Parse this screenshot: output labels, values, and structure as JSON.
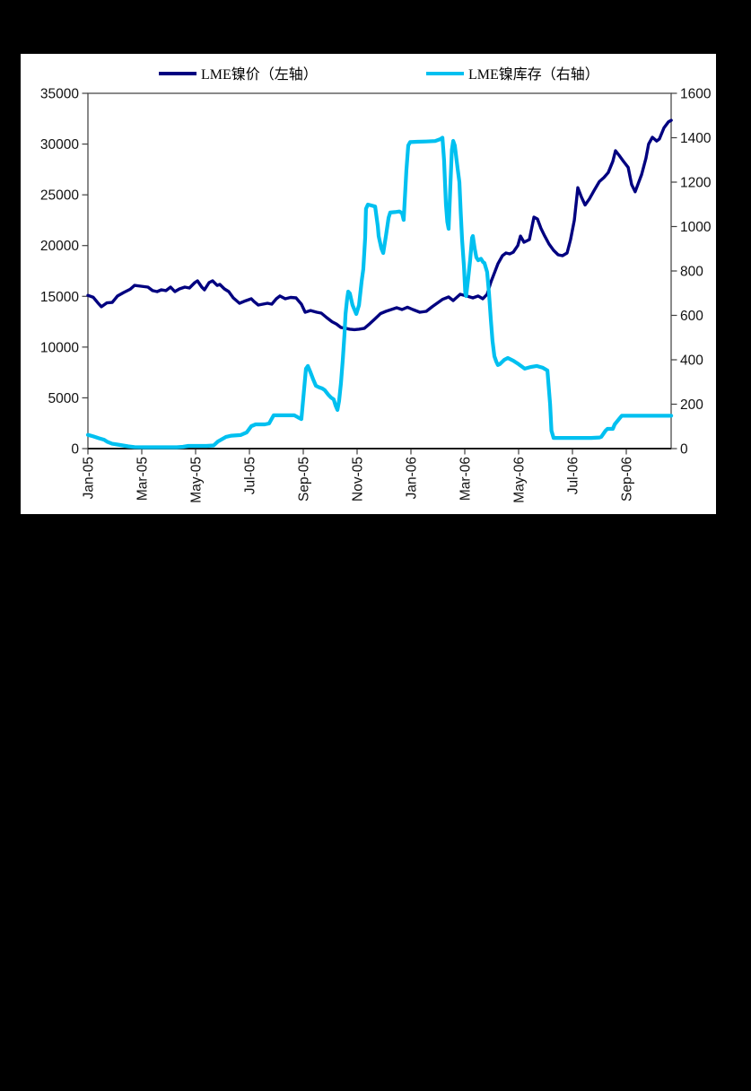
{
  "page": {
    "background": "#000000",
    "panel_background": "#ffffff"
  },
  "legend": {
    "items": [
      {
        "label": "LME镍价（左轴）",
        "color": "#000080"
      },
      {
        "label": "LME镍库存（右轴）",
        "color": "#00c0f0"
      }
    ]
  },
  "chart_data": {
    "type": "line",
    "title": "",
    "xlabel": "",
    "ylabel_left": "LME镍价",
    "ylabel_right": "LME镍库存",
    "grid": false,
    "legend_position": "top",
    "x_unit": "months since Jan-2005 (weekly data)",
    "x_range_months": [
      0,
      21.67
    ],
    "x_tick_months": [
      0,
      2,
      4,
      6,
      8,
      10,
      12,
      14,
      16,
      18,
      20
    ],
    "x_tick_labels": [
      "Jan-05",
      "Mar-05",
      "May-05",
      "Jul-05",
      "Sep-05",
      "Nov-05",
      "Jan-06",
      "Mar-06",
      "May-06",
      "Jul-06",
      "Sep-06"
    ],
    "y_left": {
      "range": [
        0,
        35000
      ],
      "ticks": [
        0,
        5000,
        10000,
        15000,
        20000,
        25000,
        30000,
        35000
      ]
    },
    "y_right": {
      "range": [
        0,
        1600
      ],
      "ticks": [
        0,
        200,
        400,
        600,
        800,
        1000,
        1200,
        1400,
        1600
      ]
    },
    "series": [
      {
        "name": "LME镍价（左轴）",
        "axis": "left",
        "color": "#000080",
        "stroke_width": 3.4,
        "points": [
          [
            0,
            15100
          ],
          [
            0.2,
            14900
          ],
          [
            0.37,
            14350
          ],
          [
            0.5,
            13970
          ],
          [
            0.7,
            14350
          ],
          [
            0.9,
            14400
          ],
          [
            1.1,
            15030
          ],
          [
            1.33,
            15380
          ],
          [
            1.57,
            15700
          ],
          [
            1.73,
            16080
          ],
          [
            1.97,
            16000
          ],
          [
            2.23,
            15910
          ],
          [
            2.4,
            15560
          ],
          [
            2.57,
            15470
          ],
          [
            2.73,
            15640
          ],
          [
            2.9,
            15560
          ],
          [
            3.07,
            15910
          ],
          [
            3.23,
            15470
          ],
          [
            3.4,
            15730
          ],
          [
            3.6,
            15910
          ],
          [
            3.77,
            15820
          ],
          [
            3.97,
            16350
          ],
          [
            4.07,
            16530
          ],
          [
            4.23,
            15910
          ],
          [
            4.33,
            15640
          ],
          [
            4.5,
            16350
          ],
          [
            4.63,
            16530
          ],
          [
            4.8,
            16080
          ],
          [
            4.9,
            16170
          ],
          [
            5.07,
            15730
          ],
          [
            5.23,
            15470
          ],
          [
            5.4,
            14850
          ],
          [
            5.63,
            14320
          ],
          [
            5.8,
            14500
          ],
          [
            6.07,
            14760
          ],
          [
            6.17,
            14490
          ],
          [
            6.33,
            14140
          ],
          [
            6.5,
            14230
          ],
          [
            6.67,
            14320
          ],
          [
            6.83,
            14230
          ],
          [
            7.0,
            14760
          ],
          [
            7.13,
            15030
          ],
          [
            7.33,
            14760
          ],
          [
            7.53,
            14890
          ],
          [
            7.73,
            14850
          ],
          [
            7.93,
            14230
          ],
          [
            8.07,
            13430
          ],
          [
            8.27,
            13600
          ],
          [
            8.5,
            13430
          ],
          [
            8.67,
            13350
          ],
          [
            8.87,
            12900
          ],
          [
            9.07,
            12500
          ],
          [
            9.23,
            12280
          ],
          [
            9.4,
            11930
          ],
          [
            9.57,
            11850
          ],
          [
            9.73,
            11760
          ],
          [
            9.9,
            11720
          ],
          [
            10.07,
            11760
          ],
          [
            10.27,
            11850
          ],
          [
            10.47,
            12300
          ],
          [
            10.67,
            12800
          ],
          [
            10.87,
            13300
          ],
          [
            11.07,
            13520
          ],
          [
            11.27,
            13700
          ],
          [
            11.47,
            13880
          ],
          [
            11.67,
            13700
          ],
          [
            11.87,
            13930
          ],
          [
            12.07,
            13700
          ],
          [
            12.33,
            13430
          ],
          [
            12.57,
            13520
          ],
          [
            12.8,
            14000
          ],
          [
            12.97,
            14320
          ],
          [
            13.17,
            14700
          ],
          [
            13.4,
            14940
          ],
          [
            13.57,
            14580
          ],
          [
            13.83,
            15200
          ],
          [
            14.07,
            15030
          ],
          [
            14.3,
            14850
          ],
          [
            14.5,
            15030
          ],
          [
            14.67,
            14760
          ],
          [
            14.83,
            15200
          ],
          [
            14.97,
            16400
          ],
          [
            15.1,
            17300
          ],
          [
            15.23,
            18200
          ],
          [
            15.4,
            19000
          ],
          [
            15.53,
            19270
          ],
          [
            15.67,
            19180
          ],
          [
            15.8,
            19350
          ],
          [
            15.97,
            20000
          ],
          [
            16.07,
            20940
          ],
          [
            16.2,
            20330
          ],
          [
            16.4,
            20590
          ],
          [
            16.57,
            22800
          ],
          [
            16.7,
            22620
          ],
          [
            16.83,
            21700
          ],
          [
            16.97,
            20940
          ],
          [
            17.13,
            20150
          ],
          [
            17.3,
            19530
          ],
          [
            17.47,
            19090
          ],
          [
            17.63,
            19000
          ],
          [
            17.8,
            19270
          ],
          [
            17.93,
            20590
          ],
          [
            18.07,
            22500
          ],
          [
            18.2,
            25700
          ],
          [
            18.33,
            24800
          ],
          [
            18.47,
            24000
          ],
          [
            18.63,
            24600
          ],
          [
            18.8,
            25400
          ],
          [
            19.0,
            26300
          ],
          [
            19.17,
            26700
          ],
          [
            19.33,
            27200
          ],
          [
            19.5,
            28300
          ],
          [
            19.6,
            29340
          ],
          [
            19.73,
            28900
          ],
          [
            19.9,
            28280
          ],
          [
            20.07,
            27700
          ],
          [
            20.2,
            26000
          ],
          [
            20.33,
            25300
          ],
          [
            20.57,
            27000
          ],
          [
            20.73,
            28600
          ],
          [
            20.83,
            30000
          ],
          [
            20.97,
            30670
          ],
          [
            21.13,
            30300
          ],
          [
            21.23,
            30500
          ],
          [
            21.4,
            31600
          ],
          [
            21.57,
            32200
          ],
          [
            21.67,
            32340
          ]
        ]
      },
      {
        "name": "LME镍库存（右轴）",
        "axis": "right",
        "color": "#00c0f0",
        "stroke_width": 4.2,
        "points": [
          [
            0,
            62
          ],
          [
            0.2,
            55
          ],
          [
            0.4,
            47
          ],
          [
            0.6,
            40
          ],
          [
            0.73,
            30
          ],
          [
            0.9,
            22
          ],
          [
            1.1,
            18
          ],
          [
            1.3,
            14
          ],
          [
            1.5,
            10
          ],
          [
            1.73,
            7
          ],
          [
            2.1,
            6
          ],
          [
            2.5,
            6
          ],
          [
            2.9,
            6
          ],
          [
            3.3,
            6
          ],
          [
            3.53,
            8
          ],
          [
            3.73,
            12
          ],
          [
            4.1,
            12
          ],
          [
            4.4,
            12
          ],
          [
            4.67,
            14
          ],
          [
            4.83,
            32
          ],
          [
            5.13,
            53
          ],
          [
            5.33,
            58
          ],
          [
            5.67,
            61
          ],
          [
            5.9,
            73
          ],
          [
            6.07,
            101
          ],
          [
            6.23,
            109
          ],
          [
            6.57,
            109
          ],
          [
            6.73,
            113
          ],
          [
            6.9,
            150
          ],
          [
            7.3,
            150
          ],
          [
            7.67,
            150
          ],
          [
            7.8,
            141
          ],
          [
            7.93,
            133
          ],
          [
            8.1,
            360
          ],
          [
            8.17,
            372
          ],
          [
            8.27,
            343
          ],
          [
            8.37,
            311
          ],
          [
            8.47,
            283
          ],
          [
            8.6,
            275
          ],
          [
            8.7,
            271
          ],
          [
            8.8,
            263
          ],
          [
            8.93,
            243
          ],
          [
            9.03,
            230
          ],
          [
            9.13,
            222
          ],
          [
            9.2,
            194
          ],
          [
            9.27,
            174
          ],
          [
            9.33,
            214
          ],
          [
            9.4,
            295
          ],
          [
            9.47,
            404
          ],
          [
            9.53,
            513
          ],
          [
            9.57,
            606
          ],
          [
            9.63,
            675
          ],
          [
            9.67,
            707
          ],
          [
            9.73,
            699
          ],
          [
            9.83,
            646
          ],
          [
            9.97,
            606
          ],
          [
            10.07,
            646
          ],
          [
            10.17,
            755
          ],
          [
            10.23,
            808
          ],
          [
            10.3,
            950
          ],
          [
            10.33,
            1080
          ],
          [
            10.4,
            1099
          ],
          [
            10.53,
            1095
          ],
          [
            10.67,
            1090
          ],
          [
            10.77,
            1000
          ],
          [
            10.8,
            957
          ],
          [
            10.9,
            902
          ],
          [
            10.97,
            881
          ],
          [
            11.07,
            957
          ],
          [
            11.17,
            1040
          ],
          [
            11.23,
            1063
          ],
          [
            11.4,
            1065
          ],
          [
            11.57,
            1068
          ],
          [
            11.67,
            1060
          ],
          [
            11.73,
            1030
          ],
          [
            11.83,
            1252
          ],
          [
            11.9,
            1365
          ],
          [
            11.97,
            1380
          ],
          [
            12.23,
            1382
          ],
          [
            12.57,
            1383
          ],
          [
            12.9,
            1385
          ],
          [
            13.1,
            1394
          ],
          [
            13.17,
            1400
          ],
          [
            13.23,
            1300
          ],
          [
            13.3,
            1100
          ],
          [
            13.35,
            1022
          ],
          [
            13.4,
            990
          ],
          [
            13.47,
            1200
          ],
          [
            13.52,
            1345
          ],
          [
            13.57,
            1386
          ],
          [
            13.63,
            1365
          ],
          [
            13.73,
            1265
          ],
          [
            13.8,
            1200
          ],
          [
            13.85,
            1063
          ],
          [
            13.9,
            941
          ],
          [
            13.97,
            820
          ],
          [
            14.02,
            699
          ],
          [
            14.05,
            687
          ],
          [
            14.13,
            770
          ],
          [
            14.2,
            850
          ],
          [
            14.27,
            949
          ],
          [
            14.3,
            957
          ],
          [
            14.37,
            900
          ],
          [
            14.43,
            861
          ],
          [
            14.5,
            848
          ],
          [
            14.6,
            855
          ],
          [
            14.68,
            840
          ],
          [
            14.73,
            836
          ],
          [
            14.83,
            795
          ],
          [
            14.9,
            699
          ],
          [
            14.97,
            578
          ],
          [
            15.03,
            485
          ],
          [
            15.1,
            416
          ],
          [
            15.17,
            392
          ],
          [
            15.23,
            376
          ],
          [
            15.3,
            380
          ],
          [
            15.47,
            400
          ],
          [
            15.6,
            408
          ],
          [
            15.8,
            396
          ],
          [
            16.0,
            380
          ],
          [
            16.23,
            360
          ],
          [
            16.47,
            368
          ],
          [
            16.67,
            372
          ],
          [
            16.9,
            364
          ],
          [
            17.07,
            352
          ],
          [
            17.17,
            200
          ],
          [
            17.22,
            81
          ],
          [
            17.3,
            48
          ],
          [
            17.7,
            48
          ],
          [
            18.2,
            48
          ],
          [
            18.7,
            48
          ],
          [
            19.0,
            50
          ],
          [
            19.07,
            53
          ],
          [
            19.23,
            81
          ],
          [
            19.3,
            89
          ],
          [
            19.5,
            89
          ],
          [
            19.57,
            109
          ],
          [
            19.73,
            133
          ],
          [
            19.83,
            148
          ],
          [
            20.2,
            148
          ],
          [
            20.7,
            148
          ],
          [
            21.2,
            148
          ],
          [
            21.67,
            148
          ]
        ]
      }
    ]
  }
}
